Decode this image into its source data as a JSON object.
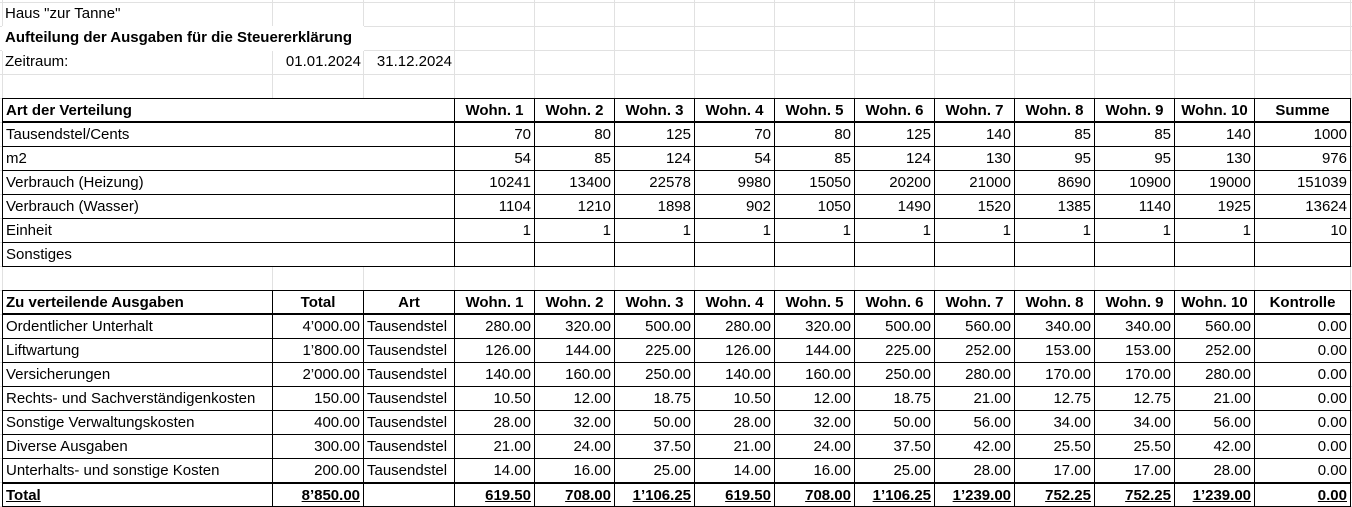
{
  "header": {
    "title": "Haus \"zur Tanne\"",
    "subtitle": "Aufteilung der Ausgaben für die Steuererklärung",
    "period_label": "Zeitraum:",
    "period_start": "01.01.2024",
    "period_end": "31.12.2024"
  },
  "distribution": {
    "columns": [
      "Art der Verteilung",
      "Wohn. 1",
      "Wohn. 2",
      "Wohn. 3",
      "Wohn. 4",
      "Wohn. 5",
      "Wohn. 6",
      "Wohn. 7",
      "Wohn. 8",
      "Wohn. 9",
      "Wohn. 10",
      "Summe"
    ],
    "rows": [
      {
        "label": "Tausendstel/Cents",
        "values": [
          "70",
          "80",
          "125",
          "70",
          "80",
          "125",
          "140",
          "85",
          "85",
          "140",
          "1000"
        ]
      },
      {
        "label": "m2",
        "values": [
          "54",
          "85",
          "124",
          "54",
          "85",
          "124",
          "130",
          "95",
          "95",
          "130",
          "976"
        ]
      },
      {
        "label": "Verbrauch (Heizung)",
        "values": [
          "10241",
          "13400",
          "22578",
          "9980",
          "15050",
          "20200",
          "21000",
          "8690",
          "10900",
          "19000",
          "151039"
        ]
      },
      {
        "label": "Verbrauch (Wasser)",
        "values": [
          "1104",
          "1210",
          "1898",
          "902",
          "1050",
          "1490",
          "1520",
          "1385",
          "1140",
          "1925",
          "13624"
        ]
      },
      {
        "label": "Einheit",
        "values": [
          "1",
          "1",
          "1",
          "1",
          "1",
          "1",
          "1",
          "1",
          "1",
          "1",
          "10"
        ]
      },
      {
        "label": "Sonstiges"
      }
    ]
  },
  "expenses": {
    "columns": [
      "Zu verteilende Ausgaben",
      "Total",
      "Art",
      "Wohn. 1",
      "Wohn. 2",
      "Wohn. 3",
      "Wohn. 4",
      "Wohn. 5",
      "Wohn. 6",
      "Wohn. 7",
      "Wohn. 8",
      "Wohn. 9",
      "Wohn. 10",
      "Kontrolle"
    ],
    "rows": [
      {
        "label": "Ordentlicher Unterhalt",
        "total": "4’000.00",
        "art": "Tausendstel",
        "values": [
          "280.00",
          "320.00",
          "500.00",
          "280.00",
          "320.00",
          "500.00",
          "560.00",
          "340.00",
          "340.00",
          "560.00"
        ],
        "check": "0.00"
      },
      {
        "label": "Liftwartung",
        "total": "1’800.00",
        "art": "Tausendstel",
        "values": [
          "126.00",
          "144.00",
          "225.00",
          "126.00",
          "144.00",
          "225.00",
          "252.00",
          "153.00",
          "153.00",
          "252.00"
        ],
        "check": "0.00"
      },
      {
        "label": "Versicherungen",
        "total": "2’000.00",
        "art": "Tausendstel",
        "values": [
          "140.00",
          "160.00",
          "250.00",
          "140.00",
          "160.00",
          "250.00",
          "280.00",
          "170.00",
          "170.00",
          "280.00"
        ],
        "check": "0.00"
      },
      {
        "label": "Rechts- und Sachverständigenkosten",
        "total": "150.00",
        "art": "Tausendstel",
        "values": [
          "10.50",
          "12.00",
          "18.75",
          "10.50",
          "12.00",
          "18.75",
          "21.00",
          "12.75",
          "12.75",
          "21.00"
        ],
        "check": "0.00"
      },
      {
        "label": "Sonstige Verwaltungskosten",
        "total": "400.00",
        "art": "Tausendstel",
        "values": [
          "28.00",
          "32.00",
          "50.00",
          "28.00",
          "32.00",
          "50.00",
          "56.00",
          "34.00",
          "34.00",
          "56.00"
        ],
        "check": "0.00"
      },
      {
        "label": "Diverse Ausgaben",
        "total": "300.00",
        "art": "Tausendstel",
        "values": [
          "21.00",
          "24.00",
          "37.50",
          "21.00",
          "24.00",
          "37.50",
          "42.00",
          "25.50",
          "25.50",
          "42.00"
        ],
        "check": "0.00"
      },
      {
        "label": "Unterhalts- und sonstige Kosten",
        "total": "200.00",
        "art": "Tausendstel",
        "values": [
          "14.00",
          "16.00",
          "25.00",
          "14.00",
          "16.00",
          "25.00",
          "28.00",
          "17.00",
          "17.00",
          "28.00"
        ],
        "check": "0.00"
      }
    ],
    "total": {
      "label": "Total",
      "total": "8’850.00",
      "values": [
        "619.50",
        "708.00",
        "1’106.25",
        "619.50",
        "708.00",
        "1’106.25",
        "1’239.00",
        "752.25",
        "752.25",
        "1’239.00"
      ],
      "check": "0.00"
    }
  }
}
